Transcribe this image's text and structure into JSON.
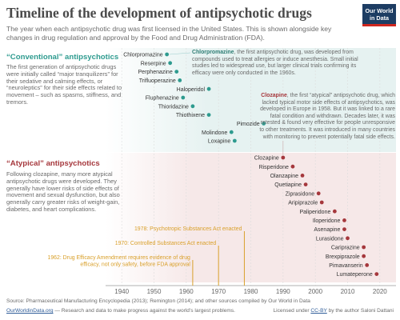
{
  "title": "Timeline of the development of antipsychotic drugs",
  "subtitle": "The year when each antipsychotic drug was first licensed in the United States. This is shown alongside key changes in drug regulation and approval by the Food and Drug Administration (FDA).",
  "logo_text": "Our World in Data",
  "conventional": {
    "heading": "“Conventional” antipsychotics",
    "body": "The first generation of antipsychotic drugs were initially called “major tranquilizers” for their sedative and calming effects, or “neuroleptics” for their side effects related to movement – such as spasms, stiffness, and tremors."
  },
  "atypical": {
    "heading": "“Atypical” antipsychotics",
    "body": "Following clozapine, many more atypical antipsychotic drugs were developed. They generally have lower risks of side effects of movement and sexual dysfunction, but also generally carry greater risks of weight-gain, diabetes, and heart complications."
  },
  "notes": {
    "chlorpromazine_name": "Chlorpromazine",
    "chlorpromazine_text": ", the first antipsychotic drug, was developed from compounds used to treat allergies or induce anesthesia. Small initial studies led to widespread use, but larger clinical trials confirming its efficacy were only conducted in the 1960s.",
    "clozapine_name": "Clozapine",
    "clozapine_text": ", the first “atypical” antipsychotic drug, which lacked typical motor side effects of antipsychotics, was developed in Europe in 1958. But it was linked to a rare fatal condition and withdrawn. Decades later, it was retested & found very effective for people unresponsive to other treatments. It was introduced in many countries with monitoring to prevent potentially fatal side effects."
  },
  "colors": {
    "conventional": "#2e9b8f",
    "atypical": "#a5373c",
    "events": "#d9a02b",
    "conventional_band": "#e6f2f1",
    "atypical_band": "#f6e8e8"
  },
  "chart_data": {
    "type": "scatter",
    "xlim": [
      1935,
      2025
    ],
    "x_ticks": [
      1940,
      1950,
      1960,
      1970,
      1980,
      1990,
      2000,
      2010,
      2020
    ],
    "conventional": [
      {
        "name": "Chlorpromazine",
        "year": 1954
      },
      {
        "name": "Reserpine",
        "year": 1955
      },
      {
        "name": "Perphenazine",
        "year": 1957
      },
      {
        "name": "Trifluoperazine",
        "year": 1958
      },
      {
        "name": "Haloperidol",
        "year": 1967
      },
      {
        "name": "Fluphenazine",
        "year": 1959
      },
      {
        "name": "Thioridazine",
        "year": 1962
      },
      {
        "name": "Thiothixene",
        "year": 1967
      },
      {
        "name": "Pimozide",
        "year": 1984
      },
      {
        "name": "Molindone",
        "year": 1974
      },
      {
        "name": "Loxapine",
        "year": 1975
      }
    ],
    "atypical": [
      {
        "name": "Clozapine",
        "year": 1990
      },
      {
        "name": "Risperidone",
        "year": 1993
      },
      {
        "name": "Olanzapine",
        "year": 1996
      },
      {
        "name": "Quetiapine",
        "year": 1997
      },
      {
        "name": "Ziprasidone",
        "year": 2001
      },
      {
        "name": "Aripiprazole",
        "year": 2002
      },
      {
        "name": "Paliperidone",
        "year": 2006
      },
      {
        "name": "Iloperidone",
        "year": 2009
      },
      {
        "name": "Asenapine",
        "year": 2009
      },
      {
        "name": "Lurasidone",
        "year": 2010
      },
      {
        "name": "Cariprazine",
        "year": 2015
      },
      {
        "name": "Brexpiprazole",
        "year": 2015
      },
      {
        "name": "Pimavanserin",
        "year": 2016
      },
      {
        "name": "Lumateperone",
        "year": 2019
      }
    ],
    "events": [
      {
        "year": 1978,
        "label": "1978: Psychotropic Substances Act enacted"
      },
      {
        "year": 1970,
        "label": "1970: Controlled Substances Act enacted"
      },
      {
        "year": 1962,
        "label": "1962: Drug Efficacy Amendment requires evidence of drug efficacy, not only safety, before FDA approval"
      }
    ]
  },
  "footer": {
    "source": "Source: Pharmaceutical Manufacturing Encyclopedia (2013); Remington (2014); and other sources compiled by Our World in Data",
    "site": "OurWorldinData.org",
    "tagline": " — Research and data to make progress against the world’s largest problems.",
    "license_prefix": "Licensed under ",
    "license": "CC-BY",
    "license_suffix": " by the author Saloni Dattani"
  }
}
